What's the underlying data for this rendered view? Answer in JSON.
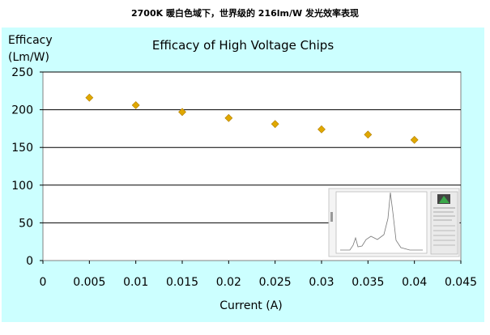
{
  "caption": "2700K 暖白色域下，世界级的 216lm/W 发光效率表现",
  "chart_data": {
    "type": "scatter",
    "title": "Efficacy of High Voltage Chips",
    "ylabel_line1": "Efficacy",
    "ylabel_line2": "(Lm/W)",
    "xlabel": "Current (A)",
    "xlim": [
      0,
      0.045
    ],
    "ylim": [
      0,
      250
    ],
    "x_ticks": [
      "0",
      "0.005",
      "0.01",
      "0.015",
      "0.02",
      "0.025",
      "0.03",
      "0.035",
      "0.04",
      "0.045"
    ],
    "y_ticks": [
      "0",
      "50",
      "100",
      "150",
      "200",
      "250"
    ],
    "grid": true,
    "marker": "diamond",
    "colors": {
      "background": "#ccffff",
      "plot": "#ffffff",
      "marker": "#e0a800",
      "marker_edge": "#b37f00"
    },
    "series": [
      {
        "x": [
          0.005,
          0.01,
          0.015,
          0.02,
          0.025,
          0.03,
          0.035,
          0.04
        ],
        "y": [
          216,
          206,
          197,
          189,
          181,
          174,
          167,
          160
        ]
      }
    ]
  }
}
